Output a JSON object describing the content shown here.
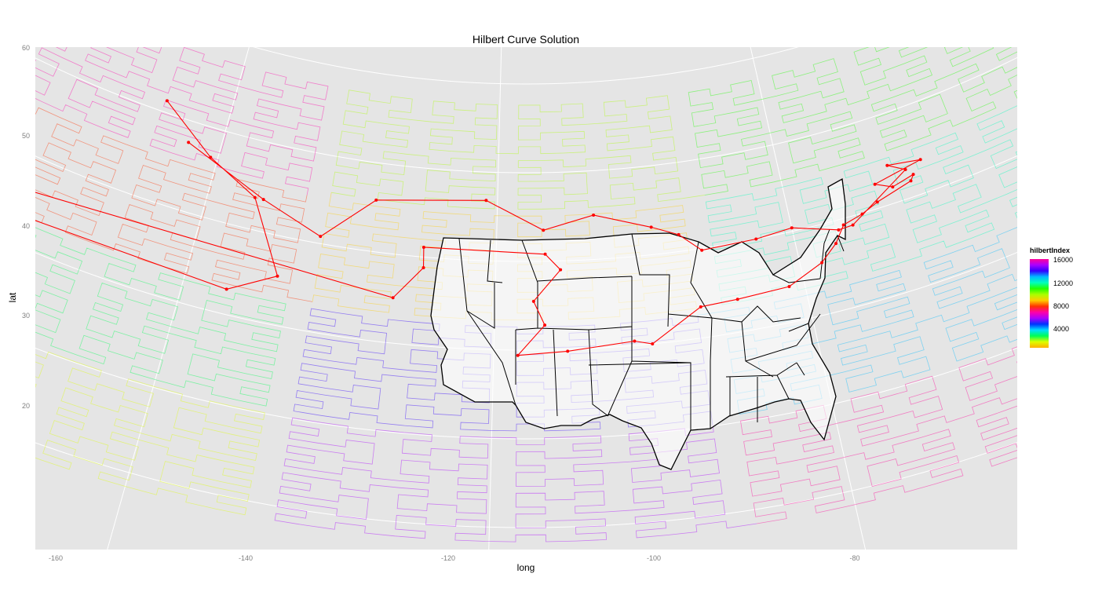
{
  "chart": {
    "title": "Hilbert Curve Solution",
    "xlabel": "long",
    "ylabel": "lat",
    "xticks": [
      "-160",
      "-140",
      "-120",
      "-100",
      "-80"
    ],
    "yticks": [
      "60",
      "50",
      "40",
      "30",
      "20"
    ],
    "legend_title": "hilbertIndex",
    "legend_labels": [
      "16000",
      "12000",
      "8000",
      "4000"
    ]
  },
  "chart_data": {
    "type": "map",
    "projection": "albers",
    "xlim": [
      -162,
      -65
    ],
    "ylim": [
      5,
      60
    ],
    "route_color": "#ff0000",
    "route_points": [
      [
        -124.7,
        51.3
      ],
      [
        -120.5,
        46.7
      ],
      [
        -116.8,
        43.6
      ],
      [
        -114.2,
        35.5
      ],
      [
        -117.2,
        32.8
      ],
      [
        -157.8,
        21.3
      ],
      [
        -106.6,
        35.1
      ],
      [
        -104.8,
        38.8
      ],
      [
        -104.9,
        41.1
      ],
      [
        -96.7,
        40.8
      ],
      [
        -95.7,
        39.0
      ],
      [
        -97.5,
        35.5
      ],
      [
        -96.8,
        32.8
      ],
      [
        -98.5,
        29.4
      ],
      [
        -95.4,
        29.8
      ],
      [
        -91.2,
        30.5
      ],
      [
        -90.1,
        30.0
      ],
      [
        -86.8,
        33.5
      ],
      [
        -84.4,
        33.7
      ],
      [
        -81.0,
        34.0
      ],
      [
        -78.6,
        35.8
      ],
      [
        -77.4,
        37.5
      ],
      [
        -76.6,
        39.3
      ],
      [
        -75.2,
        39.9
      ],
      [
        -74.0,
        40.7
      ],
      [
        -71.4,
        41.8
      ],
      [
        -71.1,
        42.4
      ],
      [
        -72.7,
        41.8
      ],
      [
        -73.8,
        42.7
      ],
      [
        -70.3,
        43.7
      ],
      [
        -72.6,
        44.3
      ],
      [
        -71.5,
        43.2
      ],
      [
        -76.0,
        39.0
      ],
      [
        -77.0,
        38.9
      ],
      [
        -80.0,
        40.4
      ],
      [
        -82.5,
        40.0
      ],
      [
        -86.2,
        39.8
      ],
      [
        -87.6,
        41.9
      ],
      [
        -89.4,
        43.1
      ],
      [
        -93.3,
        45.0
      ],
      [
        -96.8,
        43.5
      ],
      [
        -100.8,
        46.8
      ],
      [
        -108.5,
        45.8
      ],
      [
        -111.9,
        40.8
      ],
      [
        -116.2,
        43.6
      ],
      [
        -122.3,
        47.6
      ]
    ]
  },
  "colors": {
    "panel": "#e5e5e5",
    "grid": "#ffffff",
    "route": "#ff0000"
  }
}
